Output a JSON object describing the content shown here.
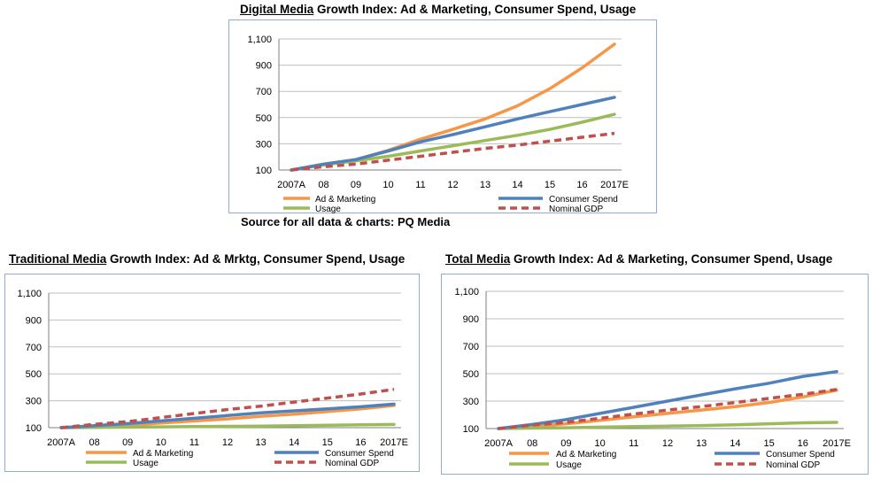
{
  "source_note": "Source for  all data & charts: PQ Media",
  "chart_data": [
    {
      "type": "line",
      "title_prefix": "Digital Media",
      "title_rest": " Growth Index: Ad & Marketing, Consumer Spend, Usage",
      "categories": [
        "2007A",
        "08",
        "09",
        "10",
        "11",
        "12",
        "13",
        "14",
        "15",
        "16",
        "2017E"
      ],
      "yticks": [
        "100",
        "300",
        "500",
        "700",
        "900",
        "1,100"
      ],
      "ylim": [
        100,
        1100
      ],
      "grid": "horizontal",
      "legend": [
        "Ad & Marketing",
        "Consumer Spend",
        "Usage",
        "Nominal GDP"
      ],
      "series": [
        {
          "name": "Ad & Marketing",
          "color": "#f79646",
          "dash": false,
          "values": [
            100,
            140,
            180,
            250,
            335,
            410,
            490,
            590,
            720,
            880,
            1060
          ]
        },
        {
          "name": "Consumer Spend",
          "color": "#4f81bd",
          "dash": false,
          "values": [
            100,
            145,
            180,
            245,
            315,
            370,
            430,
            490,
            545,
            600,
            655
          ]
        },
        {
          "name": "Usage",
          "color": "#9bbb59",
          "dash": false,
          "values": [
            100,
            140,
            170,
            205,
            245,
            285,
            325,
            365,
            410,
            465,
            525
          ]
        },
        {
          "name": "Nominal GDP",
          "color": "#c0504d",
          "dash": true,
          "values": [
            100,
            125,
            145,
            175,
            205,
            235,
            265,
            290,
            320,
            350,
            380
          ]
        }
      ]
    },
    {
      "type": "line",
      "title_prefix": "Traditional Media",
      "title_rest": " Growth Index: Ad & Mrktg, Consumer Spend, Usage",
      "categories": [
        "2007A",
        "08",
        "09",
        "10",
        "11",
        "12",
        "13",
        "14",
        "15",
        "16",
        "2017E"
      ],
      "yticks": [
        "100",
        "300",
        "500",
        "700",
        "900",
        "1,100"
      ],
      "ylim": [
        100,
        1100
      ],
      "grid": "horizontal",
      "legend": [
        "Ad & Marketing",
        "Consumer Spend",
        "Usage",
        "Nominal GDP"
      ],
      "series": [
        {
          "name": "Ad & Marketing",
          "color": "#f79646",
          "dash": false,
          "values": [
            100,
            110,
            120,
            135,
            150,
            165,
            185,
            200,
            220,
            240,
            265
          ]
        },
        {
          "name": "Consumer Spend",
          "color": "#4f81bd",
          "dash": false,
          "values": [
            100,
            115,
            130,
            150,
            170,
            190,
            210,
            225,
            240,
            255,
            275
          ]
        },
        {
          "name": "Usage",
          "color": "#9bbb59",
          "dash": false,
          "values": [
            100,
            102,
            104,
            106,
            108,
            110,
            112,
            115,
            118,
            121,
            124
          ]
        },
        {
          "name": "Nominal GDP",
          "color": "#c0504d",
          "dash": true,
          "values": [
            100,
            125,
            145,
            175,
            205,
            235,
            260,
            290,
            320,
            350,
            385
          ]
        }
      ]
    },
    {
      "type": "line",
      "title_prefix": "Total Media",
      "title_rest": " Growth Index: Ad & Marketing, Consumer Spend, Usage",
      "categories": [
        "2007A",
        "08",
        "09",
        "10",
        "11",
        "12",
        "13",
        "14",
        "15",
        "16",
        "2017E"
      ],
      "yticks": [
        "100",
        "300",
        "500",
        "700",
        "900",
        "1,100"
      ],
      "ylim": [
        100,
        1100
      ],
      "grid": "horizontal",
      "legend": [
        "Ad & Marketing",
        "Consumer Spend",
        "Usage",
        "Nominal GDP"
      ],
      "series": [
        {
          "name": "Ad & Marketing",
          "color": "#f79646",
          "dash": false,
          "values": [
            100,
            115,
            135,
            160,
            185,
            210,
            235,
            260,
            290,
            330,
            380
          ]
        },
        {
          "name": "Consumer Spend",
          "color": "#4f81bd",
          "dash": false,
          "values": [
            100,
            130,
            165,
            210,
            255,
            300,
            345,
            390,
            430,
            480,
            515
          ]
        },
        {
          "name": "Usage",
          "color": "#9bbb59",
          "dash": false,
          "values": [
            100,
            103,
            106,
            110,
            114,
            118,
            122,
            128,
            135,
            142,
            145
          ]
        },
        {
          "name": "Nominal GDP",
          "color": "#c0504d",
          "dash": true,
          "values": [
            100,
            125,
            145,
            175,
            205,
            235,
            260,
            290,
            320,
            350,
            385
          ]
        }
      ]
    }
  ]
}
